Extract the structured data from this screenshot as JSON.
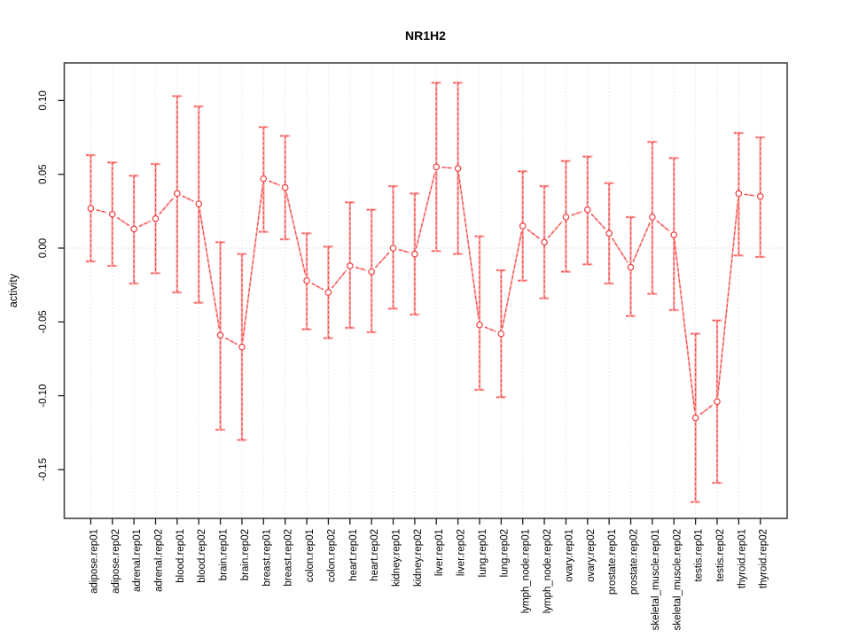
{
  "chart_data": {
    "type": "line",
    "subtype": "points-with-error-bars",
    "title": "NR1H2",
    "xlabel": "",
    "ylabel": "activity",
    "legend": "none",
    "grid": "vertical dotted gridlines at each category plus dotted zero line",
    "ylim": [
      -0.183,
      0.125
    ],
    "yticks": [
      0.1,
      0.05,
      0.0,
      -0.05,
      -0.1,
      -0.15
    ],
    "ytick_labels": [
      "0.10",
      "0.05",
      "0.00",
      "-0.05",
      "-0.10",
      "-0.15"
    ],
    "categories": [
      "adipose.rep01",
      "adipose.rep02",
      "adrenal.rep01",
      "adrenal.rep02",
      "blood.rep01",
      "blood.rep02",
      "brain.rep01",
      "brain.rep02",
      "breast.rep01",
      "breast.rep02",
      "colon.rep01",
      "colon.rep02",
      "heart.rep01",
      "heart.rep02",
      "kidney.rep01",
      "kidney.rep02",
      "liver.rep01",
      "liver.rep02",
      "lung.rep01",
      "lung.rep02",
      "lymph_node.rep01",
      "lymph_node.rep02",
      "ovary.rep01",
      "ovary.rep02",
      "prostate.rep01",
      "prostate.rep02",
      "skeletal_muscle.rep01",
      "skeletal_muscle.rep02",
      "testis.rep01",
      "testis.rep02",
      "thyroid.rep01",
      "thyroid.rep02"
    ],
    "series": [
      {
        "name": "NR1H2 activity",
        "values": [
          0.027,
          0.023,
          0.013,
          0.02,
          0.037,
          0.03,
          -0.059,
          -0.067,
          0.047,
          0.041,
          -0.022,
          -0.03,
          -0.012,
          -0.016,
          0.0,
          -0.004,
          0.055,
          0.054,
          -0.052,
          -0.058,
          0.015,
          0.004,
          0.021,
          0.026,
          0.01,
          -0.013,
          0.021,
          0.009,
          -0.115,
          -0.104,
          0.037,
          0.035
        ],
        "lower": [
          -0.009,
          -0.012,
          -0.024,
          -0.017,
          -0.03,
          -0.037,
          -0.123,
          -0.13,
          0.011,
          0.006,
          -0.055,
          -0.061,
          -0.054,
          -0.057,
          -0.041,
          -0.045,
          -0.002,
          -0.004,
          -0.096,
          -0.101,
          -0.022,
          -0.034,
          -0.016,
          -0.011,
          -0.024,
          -0.046,
          -0.031,
          -0.042,
          -0.172,
          -0.159,
          -0.005,
          -0.006
        ],
        "upper": [
          0.063,
          0.058,
          0.049,
          0.057,
          0.103,
          0.096,
          0.004,
          -0.004,
          0.082,
          0.076,
          0.01,
          0.001,
          0.031,
          0.026,
          0.042,
          0.037,
          0.112,
          0.112,
          0.008,
          -0.015,
          0.052,
          0.042,
          0.059,
          0.062,
          0.044,
          0.021,
          0.072,
          0.061,
          -0.058,
          -0.049,
          0.078,
          0.075
        ]
      }
    ],
    "colors": {
      "point_outline": "#ef3b3b",
      "error_bar_light": "#ffa6a6",
      "error_bar_dash": "#ef3b3b",
      "connector_light": "#ffa6a6",
      "connector_dash": "#ef3b3b",
      "gridline": "#dcdcdc",
      "zero_line": "#c8c8c8",
      "axis_box": "#4d4d4d",
      "text": "#000000"
    }
  }
}
